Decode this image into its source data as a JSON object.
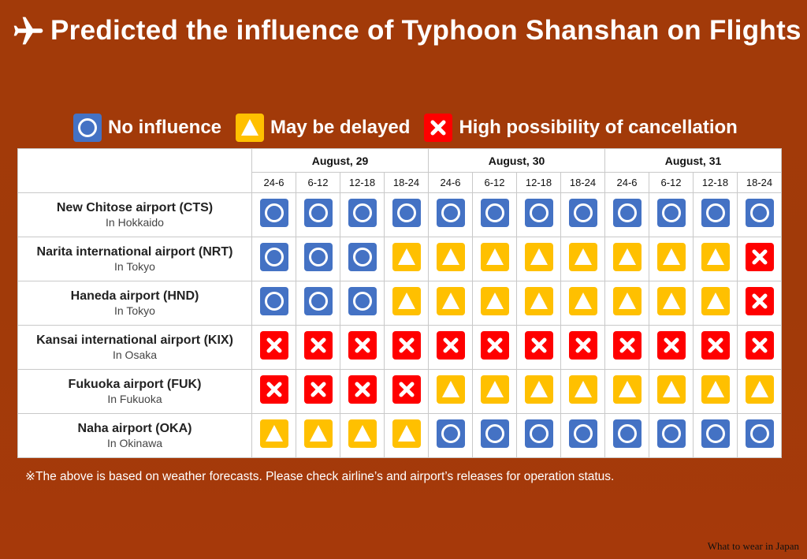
{
  "title": "Predicted the influence of Typhoon Shanshan on Flights",
  "legend": {
    "no_influence": "No influence",
    "may_be_delayed": "May be delayed",
    "high_cancellation": "High possibility of cancellation"
  },
  "colors": {
    "circle": "#4472c4",
    "triangle": "#ffc000",
    "cross": "#ff0000",
    "background": "#a23a09"
  },
  "icons": {
    "title": "airplane-icon",
    "circle": "circle-icon",
    "triangle": "triangle-icon",
    "cross": "cross-icon"
  },
  "dates": [
    "August, 29",
    "August, 30",
    "August, 31"
  ],
  "time_slots": [
    "24-6",
    "6-12",
    "12-18",
    "18-24"
  ],
  "airports": [
    {
      "name": "New Chitose airport (CTS)",
      "location": "In Hokkaido",
      "status": [
        "circle",
        "circle",
        "circle",
        "circle",
        "circle",
        "circle",
        "circle",
        "circle",
        "circle",
        "circle",
        "circle",
        "circle"
      ]
    },
    {
      "name": "Narita international airport (NRT)",
      "location": "In Tokyo",
      "status": [
        "circle",
        "circle",
        "circle",
        "triangle",
        "triangle",
        "triangle",
        "triangle",
        "triangle",
        "triangle",
        "triangle",
        "triangle",
        "cross"
      ]
    },
    {
      "name": "Haneda airport (HND)",
      "location": "In Tokyo",
      "status": [
        "circle",
        "circle",
        "circle",
        "triangle",
        "triangle",
        "triangle",
        "triangle",
        "triangle",
        "triangle",
        "triangle",
        "triangle",
        "cross"
      ]
    },
    {
      "name": "Kansai international airport (KIX)",
      "location": "In Osaka",
      "status": [
        "cross",
        "cross",
        "cross",
        "cross",
        "cross",
        "cross",
        "cross",
        "cross",
        "cross",
        "cross",
        "cross",
        "cross"
      ]
    },
    {
      "name": "Fukuoka airport (FUK)",
      "location": "In Fukuoka",
      "status": [
        "cross",
        "cross",
        "cross",
        "cross",
        "triangle",
        "triangle",
        "triangle",
        "triangle",
        "triangle",
        "triangle",
        "triangle",
        "triangle"
      ]
    },
    {
      "name": "Naha airport (OKA)",
      "location": "In Okinawa",
      "status": [
        "triangle",
        "triangle",
        "triangle",
        "triangle",
        "circle",
        "circle",
        "circle",
        "circle",
        "circle",
        "circle",
        "circle",
        "circle"
      ]
    }
  ],
  "note": "※The above is based on weather forecasts. Please check airline’s and airport’s releases for operation status.",
  "credit": "What to wear in Japan"
}
